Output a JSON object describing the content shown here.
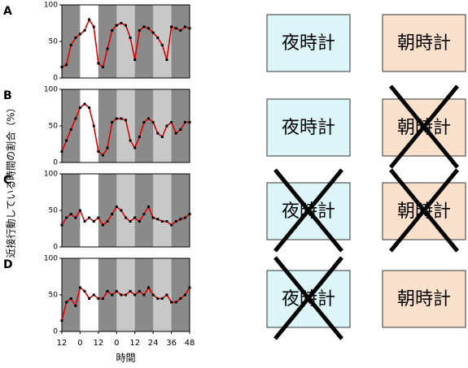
{
  "y_label": "近接行動している時間の割合（%）",
  "chart_data": [
    {
      "type": "line",
      "panel": "A",
      "xlim": [
        -36,
        48
      ],
      "ylim": [
        0,
        100
      ],
      "yticks": [
        0,
        50,
        100
      ],
      "x": [
        -36,
        -33,
        -30,
        -27,
        -24,
        -21,
        -18,
        -15,
        -12,
        -9,
        -6,
        -3,
        0,
        3,
        6,
        9,
        12,
        15,
        18,
        21,
        24,
        27,
        30,
        33,
        36,
        39,
        42,
        45,
        48
      ],
      "series": [
        {
          "color": "#e00000",
          "values": [
            15,
            18,
            45,
            55,
            60,
            65,
            80,
            70,
            20,
            15,
            40,
            65,
            72,
            75,
            72,
            55,
            25,
            65,
            70,
            68,
            62,
            55,
            45,
            25,
            70,
            68,
            65,
            70,
            68
          ]
        }
      ]
    },
    {
      "type": "line",
      "panel": "B",
      "xlim": [
        -36,
        48
      ],
      "ylim": [
        0,
        100
      ],
      "yticks": [
        0,
        50,
        100
      ],
      "x": [
        -36,
        -33,
        -30,
        -27,
        -24,
        -21,
        -18,
        -15,
        -12,
        -9,
        -6,
        -3,
        0,
        3,
        6,
        9,
        12,
        15,
        18,
        21,
        24,
        27,
        30,
        33,
        36,
        39,
        42,
        45,
        48
      ],
      "series": [
        {
          "color": "#e00000",
          "values": [
            15,
            30,
            45,
            60,
            75,
            80,
            75,
            50,
            15,
            10,
            20,
            55,
            60,
            60,
            58,
            30,
            20,
            35,
            55,
            60,
            55,
            40,
            35,
            50,
            55,
            40,
            45,
            55,
            55
          ]
        }
      ]
    },
    {
      "type": "line",
      "panel": "C",
      "xlim": [
        -36,
        48
      ],
      "ylim": [
        0,
        100
      ],
      "yticks": [
        0,
        50,
        100
      ],
      "x": [
        -36,
        -33,
        -30,
        -27,
        -24,
        -21,
        -18,
        -15,
        -12,
        -9,
        -6,
        -3,
        0,
        3,
        6,
        9,
        12,
        15,
        18,
        21,
        24,
        27,
        30,
        33,
        36,
        39,
        42,
        45,
        48
      ],
      "series": [
        {
          "color": "#e00000",
          "values": [
            30,
            40,
            45,
            40,
            50,
            35,
            40,
            35,
            40,
            30,
            35,
            45,
            55,
            50,
            40,
            35,
            40,
            35,
            45,
            55,
            40,
            38,
            35,
            35,
            30,
            35,
            38,
            40,
            45
          ]
        }
      ]
    },
    {
      "type": "line",
      "panel": "D",
      "xlim": [
        -36,
        48
      ],
      "ylim": [
        0,
        100
      ],
      "yticks": [
        0,
        50,
        100
      ],
      "xticks": [
        {
          "value": -36,
          "label": "12"
        },
        {
          "value": -24,
          "label": "0"
        },
        {
          "value": -12,
          "label": "12"
        },
        0,
        12,
        24,
        36,
        48
      ],
      "x_label": "時間",
      "x": [
        -36,
        -33,
        -30,
        -27,
        -24,
        -21,
        -18,
        -15,
        -12,
        -9,
        -6,
        -3,
        0,
        3,
        6,
        9,
        12,
        15,
        18,
        21,
        24,
        27,
        30,
        33,
        36,
        39,
        42,
        45,
        48
      ],
      "series": [
        {
          "color": "#e00000",
          "values": [
            15,
            40,
            45,
            35,
            60,
            55,
            45,
            50,
            45,
            45,
            55,
            50,
            55,
            50,
            50,
            55,
            50,
            55,
            50,
            60,
            50,
            45,
            45,
            50,
            40,
            40,
            45,
            50,
            60
          ]
        }
      ]
    }
  ],
  "boxes": [
    [
      {
        "label": "夜時計",
        "color": "#dcf6fa",
        "crossed": false
      },
      {
        "label": "朝時計",
        "color": "#fbe1cc",
        "crossed": false
      }
    ],
    [
      {
        "label": "夜時計",
        "color": "#dcf6fa",
        "crossed": false
      },
      {
        "label": "朝時計",
        "color": "#fbe1cc",
        "crossed": true
      }
    ],
    [
      {
        "label": "夜時計",
        "color": "#dcf6fa",
        "crossed": true
      },
      {
        "label": "朝時計",
        "color": "#fbe1cc",
        "crossed": true
      }
    ],
    [
      {
        "label": "夜時計",
        "color": "#dcf6fa",
        "crossed": true
      },
      {
        "label": "朝時計",
        "color": "#fbe1cc",
        "crossed": false
      }
    ]
  ]
}
